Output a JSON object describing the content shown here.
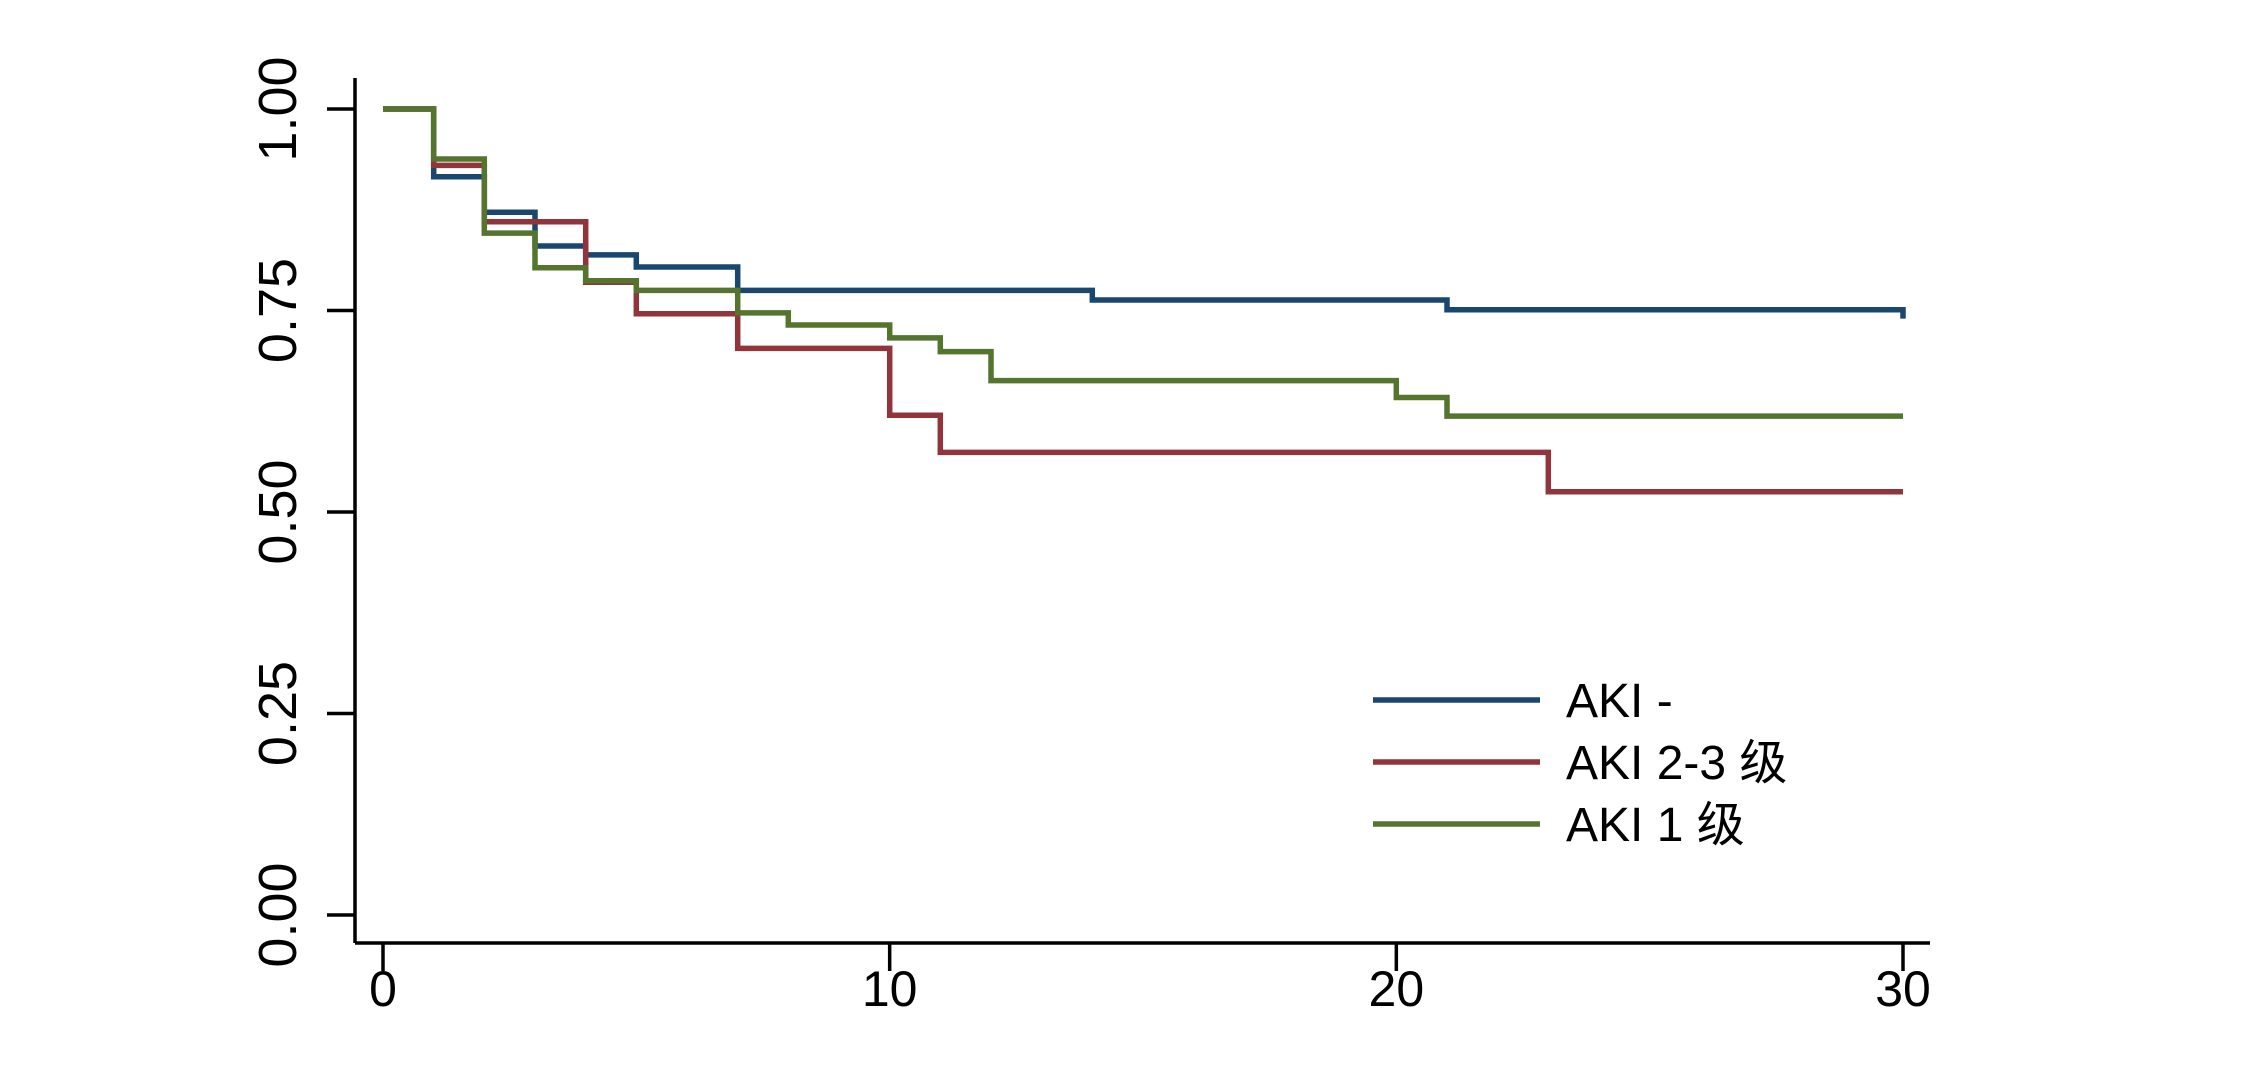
{
  "chart_data": {
    "type": "line",
    "subtype": "kaplan-meier-step",
    "title": "",
    "xlabel": "",
    "ylabel": "",
    "xlim": [
      0,
      30
    ],
    "ylim": [
      0.0,
      1.0
    ],
    "x_ticks": [
      0,
      10,
      20,
      30
    ],
    "y_ticks": [
      "0.00",
      "0.25",
      "0.50",
      "0.75",
      "1.00"
    ],
    "grid": "off",
    "legend_position": "lower-right",
    "axis_color": "#000000",
    "background_color": "#ffffff",
    "series": [
      {
        "name": "AKI -",
        "color": "#1a476f",
        "end": 30,
        "steps": [
          [
            0,
            1.0
          ],
          [
            1,
            0.916
          ],
          [
            2,
            0.872
          ],
          [
            3,
            0.83
          ],
          [
            4,
            0.819
          ],
          [
            5,
            0.804
          ],
          [
            7,
            0.775
          ],
          [
            14,
            0.763
          ],
          [
            21,
            0.751
          ],
          [
            30,
            0.74
          ]
        ]
      },
      {
        "name": "AKI 2-3 级",
        "color": "#90353b",
        "end": 30,
        "steps": [
          [
            0,
            1.0
          ],
          [
            1,
            0.93
          ],
          [
            2,
            0.86
          ],
          [
            4,
            0.785
          ],
          [
            5,
            0.746
          ],
          [
            7,
            0.703
          ],
          [
            10,
            0.62
          ],
          [
            11,
            0.574
          ],
          [
            23,
            0.525
          ]
        ]
      },
      {
        "name": "AKI 1 级",
        "color": "#55752f",
        "end": 30,
        "steps": [
          [
            0,
            1.0
          ],
          [
            1,
            0.938
          ],
          [
            2,
            0.846
          ],
          [
            3,
            0.803
          ],
          [
            4,
            0.787
          ],
          [
            5,
            0.775
          ],
          [
            7,
            0.747
          ],
          [
            8,
            0.732
          ],
          [
            10,
            0.716
          ],
          [
            11,
            0.699
          ],
          [
            12,
            0.663
          ],
          [
            20,
            0.642
          ],
          [
            21,
            0.619
          ]
        ]
      }
    ]
  },
  "legend": {
    "items": [
      {
        "label": "AKI -",
        "color": "#1a476f"
      },
      {
        "label": "AKI 2-3 级",
        "color": "#90353b"
      },
      {
        "label": "AKI 1 级",
        "color": "#55752f"
      }
    ]
  }
}
